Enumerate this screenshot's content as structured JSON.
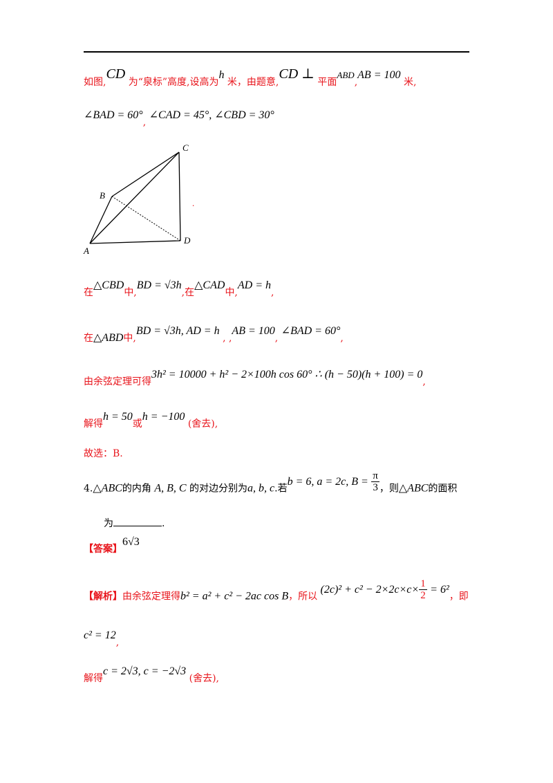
{
  "lines": {
    "l1": {
      "t1": "如图,",
      "m1": "CD",
      "t2": "为“泉标”高度,设高为",
      "m2": "h",
      "t3": "米，由题意,",
      "m3": "CD ⊥",
      "t4": "平面",
      "m4": "ABD",
      "t5": ",",
      "m5": "AB = 100",
      "t6": "米,"
    },
    "l2": {
      "m1": "∠BAD = 60°",
      "t1": ",",
      "m2": "∠CAD = 45°, ∠CBD = 30°"
    },
    "l3": {
      "t1": "在",
      "m1": "△CBD",
      "t2": "中,",
      "m2": "BD = √3h",
      "t3": ",在",
      "m3": "△CAD",
      "t4": "中,",
      "m4": "AD = h",
      "t5": ","
    },
    "l4": {
      "t1": "在",
      "m1": "△ABD",
      "t2": "中,",
      "m2": "BD = √3h, AD = h",
      "t3": ", ,",
      "m3": "AB = 100",
      "t4": ",",
      "m4": "∠BAD = 60°",
      "t5": ","
    },
    "l5": {
      "t1": "由余弦定理可得",
      "m1": "3h² = 10000 + h² − 2×100h cos 60° ∴ (h − 50)(h + 100) = 0",
      "t2": ","
    },
    "l6": {
      "t1": "解得",
      "m1": "h = 50",
      "t2": "或",
      "m2": "h = −100",
      "t3": "(舍去),"
    },
    "l7": {
      "t1": "故选：B."
    },
    "q4": {
      "t1": "4.",
      "m1": "△ABC",
      "t2": "的内角",
      "m2": "A, B, C",
      "t3": "的对边分别为",
      "m3": "a, b, c",
      "t4": ".若",
      "m4": "b = 6, a = 2c, B =",
      "pi": "π",
      "three": "3",
      "t5": "，则",
      "m5": "△ABC",
      "t6": "的面积"
    },
    "q4b": {
      "t1": "为",
      "t2": "."
    },
    "ans": {
      "label": "【答案】",
      "m1": "6√3"
    },
    "exp": {
      "label": "【解析】",
      "t1": "由余弦定理得",
      "m1": "b² = a² + c² − 2ac cos B",
      "t2": "，所以",
      "m2": "(2c)² + c² − 2×2c×c×",
      "one": "1",
      "two": "2",
      "m3": "= 6²",
      "t3": "，即"
    },
    "l8": {
      "m1": "c² = 12",
      "t1": ","
    },
    "l9": {
      "t1": "解得",
      "m1": "c = 2√3, c = −2√3",
      "t2": "(舍去),"
    }
  },
  "figure": {
    "labels": {
      "A": "A",
      "B": "B",
      "C": "C",
      "D": "D"
    },
    "dot": "."
  }
}
